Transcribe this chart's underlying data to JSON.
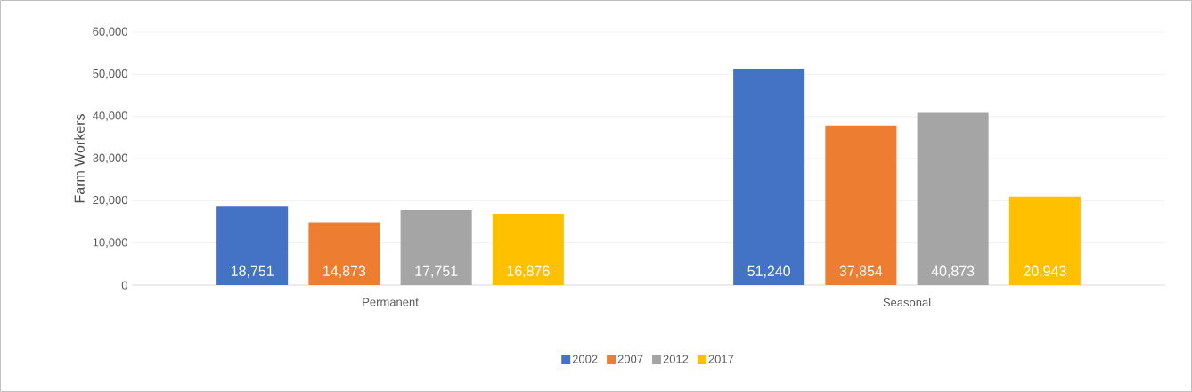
{
  "chart_data": {
    "type": "bar",
    "ylabel": "Farm Workers",
    "categories": [
      "Permanent",
      "Seasonal"
    ],
    "series": [
      {
        "name": "2002",
        "color": "#4472c4",
        "values": [
          18751,
          51240
        ],
        "value_labels": [
          "18,751",
          "51,240"
        ]
      },
      {
        "name": "2007",
        "color": "#ed7d31",
        "values": [
          14873,
          37854
        ],
        "value_labels": [
          "14,873",
          "37,854"
        ]
      },
      {
        "name": "2012",
        "color": "#a5a5a5",
        "values": [
          17751,
          40873
        ],
        "value_labels": [
          "17,751",
          "40,873"
        ]
      },
      {
        "name": "2017",
        "color": "#ffc000",
        "values": [
          16876,
          20943
        ],
        "value_labels": [
          "16,876",
          "20,943"
        ]
      }
    ],
    "ylim": [
      0,
      60000
    ],
    "yticks": [
      {
        "value": 0,
        "label": "0"
      },
      {
        "value": 10000,
        "label": "10,000"
      },
      {
        "value": 20000,
        "label": "20,000"
      },
      {
        "value": 30000,
        "label": "30,000"
      },
      {
        "value": 40000,
        "label": "40,000"
      },
      {
        "value": 50000,
        "label": "50,000"
      },
      {
        "value": 60000,
        "label": "60,000"
      }
    ],
    "grid": "y",
    "legend": "bottom"
  }
}
